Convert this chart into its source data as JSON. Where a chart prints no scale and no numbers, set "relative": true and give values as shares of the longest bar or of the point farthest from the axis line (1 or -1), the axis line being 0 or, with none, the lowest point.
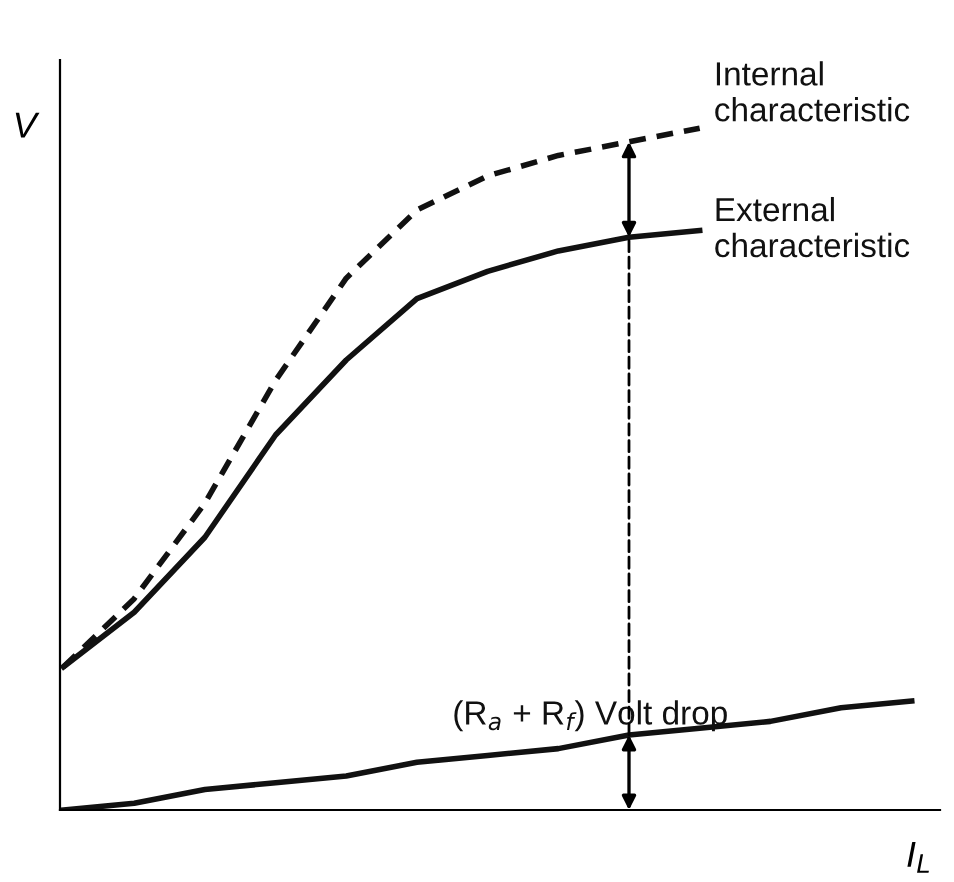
{
  "chart_data": {
    "type": "line",
    "relative": true,
    "xlabel": "I$_{L}$",
    "ylabel": "V",
    "categories": [
      null,
      null,
      null,
      null,
      null,
      null,
      null,
      null,
      null,
      null,
      null,
      null,
      null
    ],
    "series": [
      {
        "name": "Internal characteristic",
        "color": "#111111",
        "line_style": "dashed",
        "values": [
          0.21,
          0.31,
          0.45,
          0.63,
          0.78,
          0.88,
          0.93,
          0.96,
          0.98,
          1.0,
          null,
          null,
          null
        ]
      },
      {
        "name": "External characteristic",
        "color": "#111111",
        "line_style": "solid",
        "values": [
          0.21,
          0.29,
          0.4,
          0.55,
          0.66,
          0.75,
          0.79,
          0.82,
          0.84,
          0.85,
          null,
          null,
          null
        ]
      },
      {
        "name": "(R$_{a}$ + R$_{f}$) Volt drop",
        "color": "#111111",
        "line_style": "solid",
        "values": [
          0,
          0.01,
          0.03,
          0.04,
          0.05,
          0.07,
          0.08,
          0.09,
          0.11,
          0.12,
          0.13,
          0.15,
          0.16
        ]
      }
    ],
    "marker": "none",
    "grid": false,
    "legend": false
  }
}
